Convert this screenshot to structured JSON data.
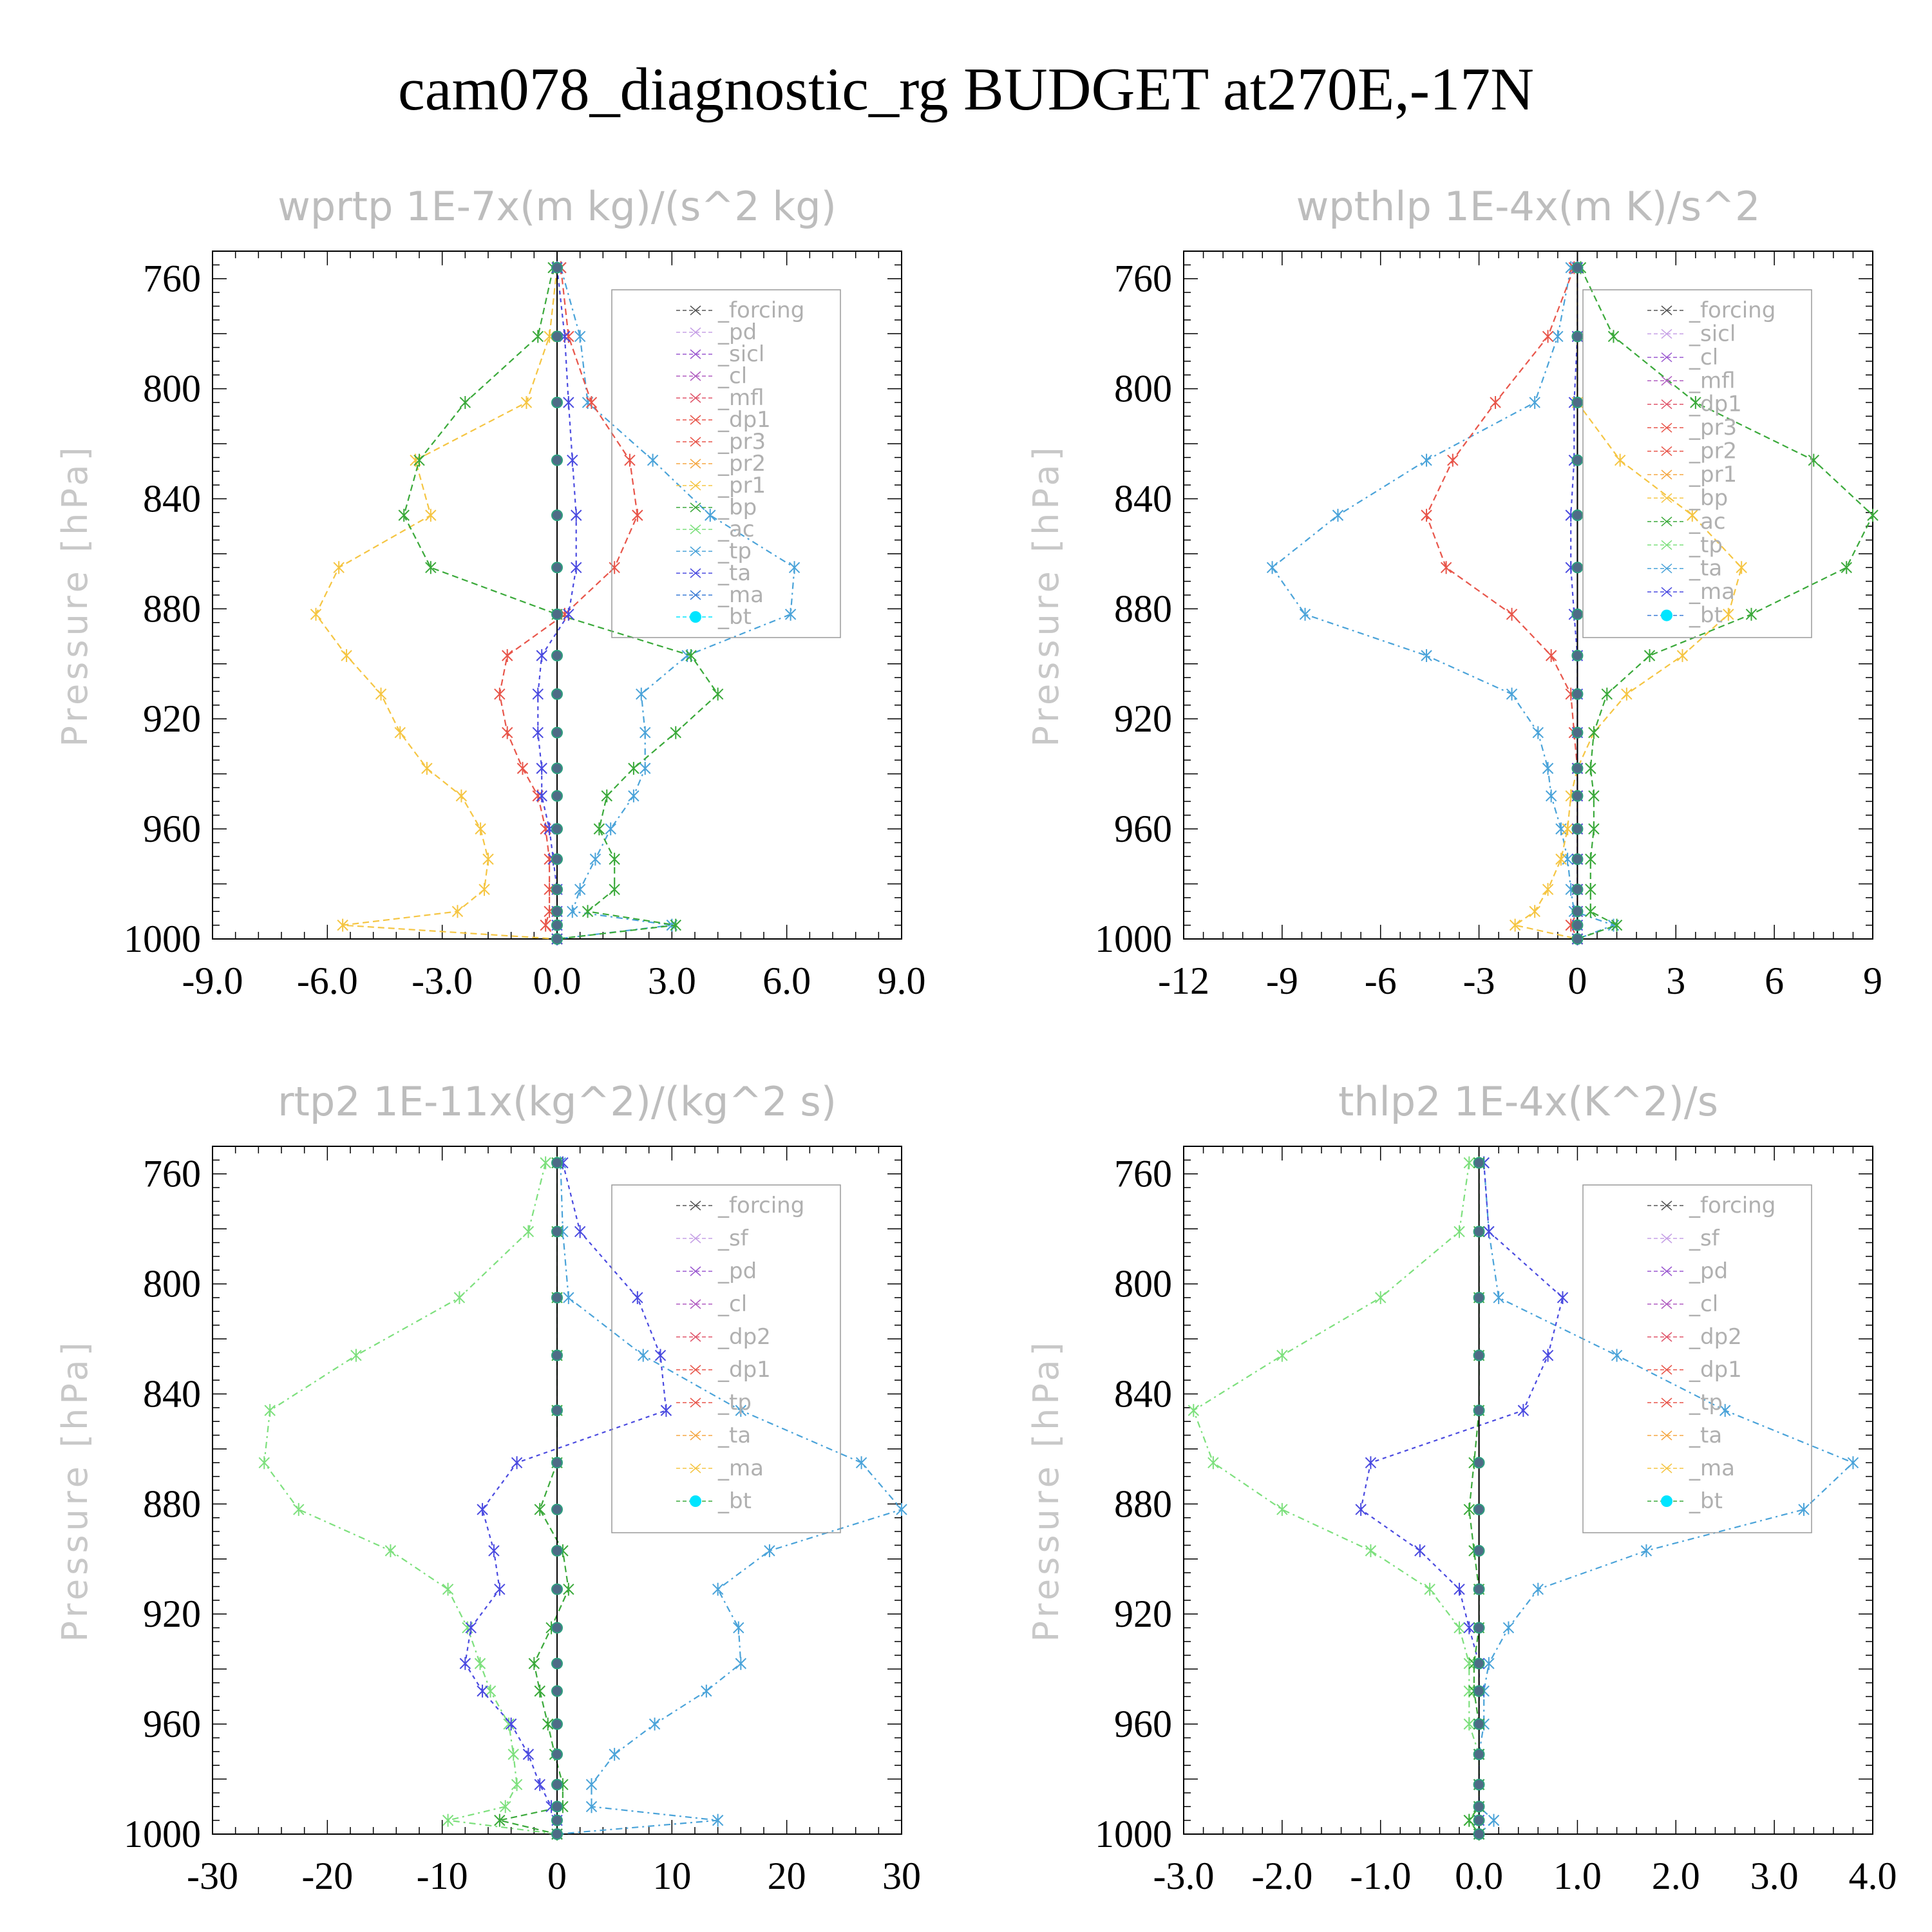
{
  "title": "cam078_diagnostic_rg  BUDGET at270E,-17N",
  "chart_data": [
    {
      "type": "line",
      "title": "wprtp  1E-7x(m kg)/(s^2 kg)",
      "ylabel": "Pressure [hPa]",
      "xlim": [
        -9,
        9
      ],
      "xticks": [
        "-9.0",
        "-6.0",
        "-3.0",
        "0.0",
        "3.0",
        "6.0",
        "9.0"
      ],
      "xtick_values": [
        -9,
        -6,
        -3,
        0,
        3,
        6,
        9
      ],
      "ylim": [
        1000,
        750
      ],
      "yticks": [
        "760",
        "800",
        "840",
        "880",
        "920",
        "960",
        "1000"
      ],
      "ytick_values": [
        760,
        800,
        840,
        880,
        920,
        960,
        1000
      ],
      "legend_loc": "upper-right",
      "legend": [
        "_forcing",
        "_pd",
        "_sicl",
        "_cl",
        "_mfl",
        "_dp1",
        "_pr3",
        "_pr2",
        "_pr1",
        "_bp",
        "_ac",
        "_tp",
        "_ta",
        "_ma",
        "_bt"
      ],
      "y": [
        756,
        781,
        805,
        826,
        846,
        865,
        882,
        897,
        911,
        925,
        938,
        948,
        960,
        971,
        982,
        990,
        995,
        1000
      ],
      "series": [
        {
          "name": "_tp",
          "color": "#4aa3d9",
          "dash": "10,6,3,6",
          "values": [
            0.1,
            0.6,
            0.8,
            2.5,
            4.0,
            6.2,
            6.1,
            3.4,
            2.2,
            2.3,
            2.3,
            2.0,
            1.4,
            1.0,
            0.6,
            0.4,
            3.0,
            0.0
          ]
        },
        {
          "name": "_pr1",
          "color": "#f5c542",
          "dash": "10,6",
          "values": [
            0.0,
            -0.2,
            -0.8,
            -3.7,
            -3.3,
            -5.7,
            -6.3,
            -5.5,
            -4.6,
            -4.1,
            -3.4,
            -2.5,
            -2.0,
            -1.8,
            -1.9,
            -2.6,
            -5.6,
            0.0
          ]
        },
        {
          "name": "_bp",
          "color": "#3aa93a",
          "dash": "10,6",
          "values": [
            -0.1,
            -0.5,
            -2.4,
            -3.6,
            -4.0,
            -3.3,
            0.0,
            3.5,
            4.2,
            3.1,
            2.0,
            1.3,
            1.1,
            1.5,
            1.5,
            0.8,
            3.1,
            0.0
          ]
        },
        {
          "name": "_pr3",
          "color": "#e8554a",
          "dash": "10,6",
          "values": [
            0.1,
            0.3,
            0.9,
            1.9,
            2.1,
            1.5,
            0.2,
            -1.3,
            -1.5,
            -1.3,
            -0.9,
            -0.5,
            -0.3,
            -0.2,
            -0.2,
            -0.2,
            -0.3,
            0.0
          ]
        },
        {
          "name": "_ta",
          "color": "#4a4ae0",
          "dash": "6,6",
          "values": [
            0.0,
            0.2,
            0.3,
            0.4,
            0.5,
            0.5,
            0.3,
            -0.4,
            -0.5,
            -0.5,
            -0.4,
            -0.4,
            -0.2,
            -0.1,
            0.0,
            0.0,
            0.0,
            0.0
          ]
        },
        {
          "name": "_bt",
          "color": "#000000",
          "dash": "",
          "values": [
            0,
            0,
            0,
            0,
            0,
            0,
            0,
            0,
            0,
            0,
            0,
            0,
            0,
            0,
            0,
            0,
            0,
            0
          ]
        }
      ]
    },
    {
      "type": "line",
      "title": "wpthlp  1E-4x(m K)/s^2",
      "ylabel": "Pressure [hPa]",
      "xlim": [
        -12,
        9
      ],
      "xticks": [
        "-12",
        "-9",
        "-6",
        "-3",
        "0",
        "3",
        "6",
        "9"
      ],
      "xtick_values": [
        -12,
        -9,
        -6,
        -3,
        0,
        3,
        6,
        9
      ],
      "ylim": [
        1000,
        750
      ],
      "yticks": [
        "760",
        "800",
        "840",
        "880",
        "920",
        "960",
        "1000"
      ],
      "ytick_values": [
        760,
        800,
        840,
        880,
        920,
        960,
        1000
      ],
      "legend_loc": "upper-right",
      "legend": [
        "_forcing",
        "_sicl",
        "_cl",
        "_mfl",
        "_dp1",
        "_pr3",
        "_pr2",
        "_pr1",
        "_bp",
        "_ac",
        "_tp",
        "_ta",
        "_ma",
        "_bt"
      ],
      "y": [
        756,
        781,
        805,
        826,
        846,
        865,
        882,
        897,
        911,
        925,
        938,
        948,
        960,
        971,
        982,
        990,
        995,
        1000
      ],
      "series": [
        {
          "name": "_tp",
          "color": "#4aa3d9",
          "dash": "10,6,3,6",
          "values": [
            -0.2,
            -0.6,
            -1.3,
            -4.6,
            -7.3,
            -9.3,
            -8.3,
            -4.6,
            -2.0,
            -1.2,
            -0.9,
            -0.8,
            -0.5,
            -0.3,
            -0.2,
            -0.1,
            1.1,
            0.0
          ]
        },
        {
          "name": "_pr1",
          "color": "#f5c542",
          "dash": "10,6",
          "values": [
            0.0,
            0.0,
            0.0,
            1.3,
            3.5,
            5.0,
            4.6,
            3.2,
            1.5,
            0.5,
            0.0,
            -0.2,
            -0.3,
            -0.5,
            -0.9,
            -1.3,
            -1.9,
            0.0
          ]
        },
        {
          "name": "_bp",
          "color": "#3aa93a",
          "dash": "10,6",
          "values": [
            0.1,
            1.1,
            3.6,
            7.2,
            9.0,
            8.2,
            5.3,
            2.2,
            0.9,
            0.5,
            0.4,
            0.5,
            0.5,
            0.4,
            0.4,
            0.4,
            1.2,
            0.0
          ]
        },
        {
          "name": "_pr3",
          "color": "#e8554a",
          "dash": "10,6",
          "values": [
            -0.1,
            -0.9,
            -2.5,
            -3.8,
            -4.6,
            -4.0,
            -2.0,
            -0.8,
            -0.2,
            -0.1,
            0.0,
            0.0,
            0.0,
            0.0,
            0.0,
            0.0,
            -0.2,
            0.0
          ]
        },
        {
          "name": "_ta",
          "color": "#4a4ae0",
          "dash": "6,6",
          "values": [
            0.0,
            0.0,
            -0.1,
            -0.1,
            -0.2,
            -0.2,
            -0.1,
            0.0,
            0.0,
            0.0,
            0.0,
            0.0,
            0.0,
            0.0,
            0.0,
            0.0,
            0.0,
            0.0
          ]
        },
        {
          "name": "_bt",
          "color": "#000000",
          "dash": "",
          "values": [
            0,
            0,
            0,
            0,
            0,
            0,
            0,
            0,
            0,
            0,
            0,
            0,
            0,
            0,
            0,
            0,
            0,
            0
          ]
        }
      ]
    },
    {
      "type": "line",
      "title": "rtp2  1E-11x(kg^2)/(kg^2 s)",
      "ylabel": "Pressure [hPa]",
      "xlim": [
        -30,
        30
      ],
      "xticks": [
        "-30",
        "-20",
        "-10",
        "0",
        "10",
        "20",
        "30"
      ],
      "xtick_values": [
        -30,
        -20,
        -10,
        0,
        10,
        20,
        30
      ],
      "ylim": [
        1000,
        750
      ],
      "yticks": [
        "760",
        "800",
        "840",
        "880",
        "920",
        "960",
        "1000"
      ],
      "ytick_values": [
        760,
        800,
        840,
        880,
        920,
        960,
        1000
      ],
      "legend_loc": "upper-right",
      "legend": [
        "_forcing",
        "_sf",
        "_pd",
        "_cl",
        "_dp2",
        "_dp1",
        "_tp",
        "_ta",
        "_ma",
        "_bt"
      ],
      "y": [
        756,
        781,
        805,
        826,
        846,
        865,
        882,
        897,
        911,
        925,
        938,
        948,
        960,
        971,
        982,
        990,
        995,
        1000
      ],
      "series": [
        {
          "name": "_dp1",
          "color": "#7de07d",
          "dash": "10,6,3,6",
          "values": [
            -1.0,
            -2.5,
            -8.5,
            -17.5,
            -25.0,
            -25.5,
            -22.5,
            -14.5,
            -9.5,
            -7.8,
            -6.7,
            -5.8,
            -4.2,
            -3.8,
            -3.5,
            -4.5,
            -9.5,
            0.0
          ]
        },
        {
          "name": "_tp",
          "color": "#4aa3d9",
          "dash": "10,6,3,6",
          "values": [
            0.3,
            0.5,
            1.0,
            7.5,
            16.0,
            26.5,
            30.0,
            18.5,
            14.0,
            15.8,
            16.0,
            13.0,
            8.5,
            5.0,
            3.0,
            3.0,
            14.0,
            0.0
          ]
        },
        {
          "name": "_ta",
          "color": "#4a4ae0",
          "dash": "6,6",
          "values": [
            0.5,
            2.0,
            7.0,
            9.0,
            9.5,
            -3.5,
            -6.5,
            -5.5,
            -5.0,
            -7.5,
            -8.0,
            -6.5,
            -4.0,
            -2.5,
            -1.5,
            -0.5,
            0.0,
            0.0
          ]
        },
        {
          "name": "_dp2",
          "color": "#3aa93a",
          "dash": "10,6",
          "values": [
            0.0,
            0.0,
            0.0,
            0.0,
            0.0,
            0.0,
            -1.5,
            0.5,
            1.0,
            -0.5,
            -2.0,
            -1.5,
            -0.8,
            -0.2,
            0.5,
            0.5,
            -5.0,
            0.0
          ]
        },
        {
          "name": "_bt",
          "color": "#000000",
          "dash": "",
          "values": [
            0,
            0,
            0,
            0,
            0,
            0,
            0,
            0,
            0,
            0,
            0,
            0,
            0,
            0,
            0,
            0,
            0,
            0
          ]
        }
      ]
    },
    {
      "type": "line",
      "title": "thlp2  1E-4x(K^2)/s",
      "ylabel": "Pressure [hPa]",
      "xlim": [
        -3,
        4
      ],
      "xticks": [
        "-3.0",
        "-2.0",
        "-1.0",
        "0.0",
        "1.0",
        "2.0",
        "3.0",
        "4.0"
      ],
      "xtick_values": [
        -3,
        -2,
        -1,
        0,
        1,
        2,
        3,
        4
      ],
      "ylim": [
        1000,
        750
      ],
      "yticks": [
        "760",
        "800",
        "840",
        "880",
        "920",
        "960",
        "1000"
      ],
      "ytick_values": [
        760,
        800,
        840,
        880,
        920,
        960,
        1000
      ],
      "legend_loc": "upper-right",
      "legend": [
        "_forcing",
        "_sf",
        "_pd",
        "_cl",
        "_dp2",
        "_dp1",
        "_tp",
        "_ta",
        "_ma",
        "_bt"
      ],
      "y": [
        756,
        781,
        805,
        826,
        846,
        865,
        882,
        897,
        911,
        925,
        938,
        948,
        960,
        971,
        982,
        990,
        995,
        1000
      ],
      "series": [
        {
          "name": "_dp1",
          "color": "#7de07d",
          "dash": "10,6,3,6",
          "values": [
            -0.1,
            -0.2,
            -1.0,
            -2.0,
            -2.9,
            -2.7,
            -2.0,
            -1.1,
            -0.5,
            -0.2,
            -0.1,
            -0.1,
            -0.1,
            0.0,
            0.0,
            0.0,
            -0.1,
            0.0
          ]
        },
        {
          "name": "_tp",
          "color": "#4aa3d9",
          "dash": "10,6,3,6",
          "values": [
            0.05,
            0.1,
            0.2,
            1.4,
            2.5,
            3.8,
            3.3,
            1.7,
            0.6,
            0.3,
            0.1,
            0.05,
            0.05,
            0.0,
            0.0,
            0.0,
            0.15,
            0.0
          ]
        },
        {
          "name": "_ta",
          "color": "#4a4ae0",
          "dash": "6,6",
          "values": [
            0.05,
            0.1,
            0.85,
            0.7,
            0.45,
            -1.1,
            -1.2,
            -0.6,
            -0.2,
            -0.1,
            0.0,
            0.0,
            0.0,
            0.0,
            0.0,
            0.0,
            0.0,
            0.0
          ]
        },
        {
          "name": "_dp2",
          "color": "#3aa93a",
          "dash": "10,6",
          "values": [
            0.0,
            0.0,
            0.0,
            0.0,
            0.0,
            -0.05,
            -0.1,
            -0.05,
            0.0,
            0.0,
            -0.05,
            -0.05,
            0.0,
            0.0,
            0.0,
            0.0,
            -0.1,
            0.0
          ]
        },
        {
          "name": "_bt",
          "color": "#000000",
          "dash": "",
          "values": [
            0,
            0,
            0,
            0,
            0,
            0,
            0,
            0,
            0,
            0,
            0,
            0,
            0,
            0,
            0,
            0,
            0,
            0
          ]
        }
      ]
    }
  ]
}
